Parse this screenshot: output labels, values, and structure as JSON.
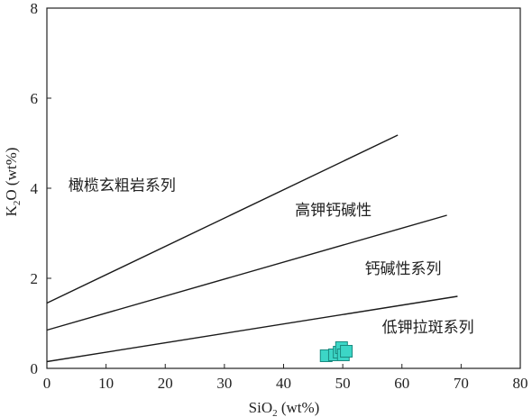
{
  "chart_data": {
    "type": "scatter",
    "title": "",
    "xlabel": {
      "base": "SiO",
      "sub": "2",
      "rest": " (wt%)"
    },
    "ylabel": {
      "base": "K",
      "sub": "2",
      "rest": "O (wt%)"
    },
    "xlim": [
      0,
      80
    ],
    "ylim": [
      0,
      8
    ],
    "xticks": [
      "0",
      "10",
      "20",
      "30",
      "40",
      "50",
      "60",
      "70",
      "80"
    ],
    "yticks": [
      "0",
      "2",
      "4",
      "6",
      "8"
    ],
    "grid": false,
    "boundary_lines": [
      {
        "x": [
          0,
          59.3
        ],
        "y": [
          1.45,
          5.18
        ]
      },
      {
        "x": [
          0,
          67.6
        ],
        "y": [
          0.85,
          3.4
        ]
      },
      {
        "x": [
          0,
          69.4
        ],
        "y": [
          0.15,
          1.6
        ]
      }
    ],
    "region_labels": [
      {
        "text": "橄榄玄粗岩系列",
        "x": 12.7,
        "y": 3.95
      },
      {
        "text": "高钾钙碱性",
        "x": 48.4,
        "y": 3.4
      },
      {
        "text": "钙碱性系列",
        "x": 60.2,
        "y": 2.1
      },
      {
        "text": "低钾拉斑系列",
        "x": 64.4,
        "y": 0.8
      }
    ],
    "series": [
      {
        "marker": "square",
        "color": "#3cd6c6",
        "edge_color": "#1a8a80",
        "points": [
          {
            "x": 47.2,
            "y": 0.28
          },
          {
            "x": 48.6,
            "y": 0.3
          },
          {
            "x": 49.4,
            "y": 0.36
          },
          {
            "x": 49.8,
            "y": 0.46
          },
          {
            "x": 50.1,
            "y": 0.3
          },
          {
            "x": 50.6,
            "y": 0.38
          }
        ]
      }
    ]
  }
}
